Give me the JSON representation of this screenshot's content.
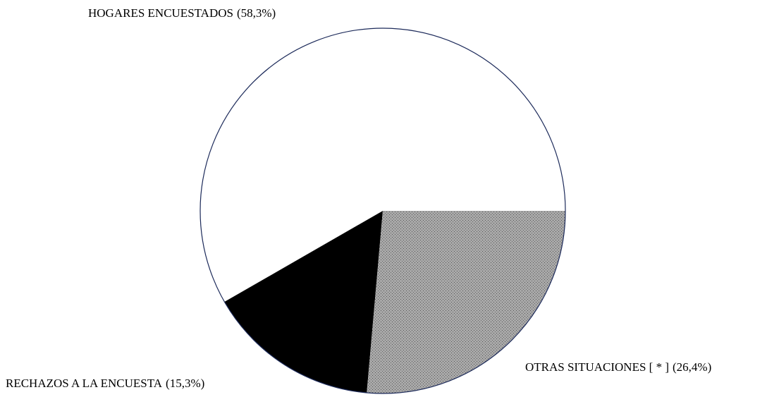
{
  "chart_data": {
    "type": "pie",
    "categories": [
      "HOGARES ENCUESTADOS",
      "RECHAZOS A LA ENCUESTA",
      "OTRAS SITUACIONES [ * ]"
    ],
    "values": [
      58.3,
      15.3,
      26.4
    ],
    "value_labels": [
      "(58,3%)",
      "(15,3%)",
      "(26,4%)"
    ],
    "colors": [
      "#ffffff",
      "#000000",
      "#9a9a9a"
    ],
    "outline_color": "#1c2a5a"
  }
}
